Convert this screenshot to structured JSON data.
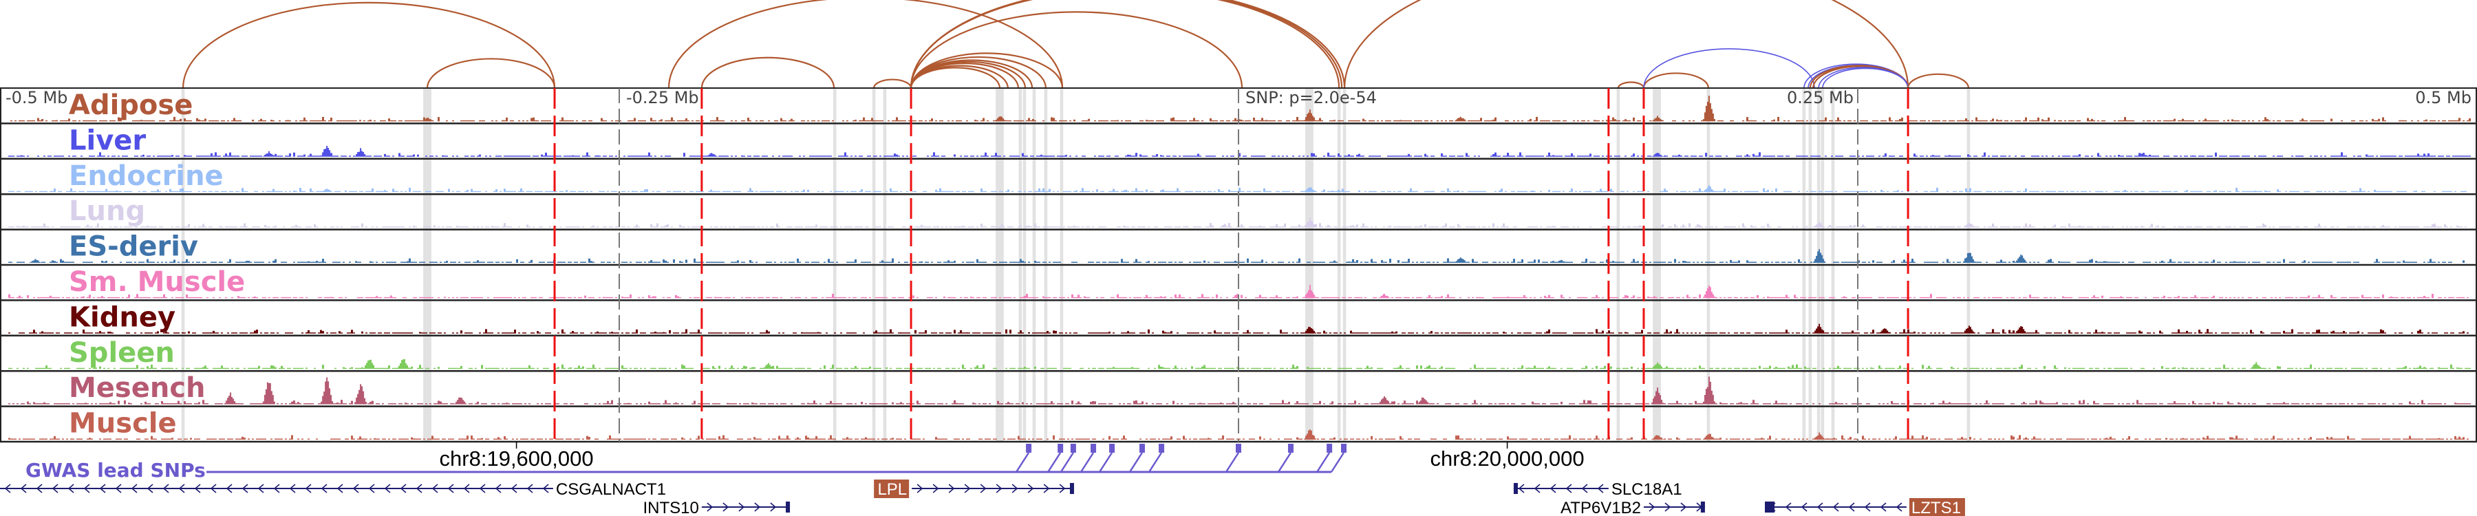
{
  "colors": {
    "arc_brown": "#b0582f",
    "arc_blue": "#5a55e0",
    "lead_snp_line": "#ee1111",
    "highlight": "#e2e2e2",
    "gene": "#1c1c70",
    "gwas": "#6a5acd",
    "gene_box": "#b0583a"
  },
  "axis": {
    "unit": "Mb offset from lead SNP",
    "labels": [
      {
        "pos": -0.5,
        "text": "-0.5 Mb",
        "anchor": "start"
      },
      {
        "pos": -0.25,
        "text": "-0.25 Mb",
        "anchor": "start"
      },
      {
        "pos": 0,
        "text": "SNP: p=2.0e-54",
        "anchor": "start"
      },
      {
        "pos": 0.25,
        "text": "0.25 Mb",
        "anchor": "end"
      },
      {
        "pos": 0.5,
        "text": "0.5 Mb",
        "anchor": "end"
      }
    ],
    "ruler": [
      {
        "pos": -0.2915,
        "text": "chr8:19,600,000"
      },
      {
        "pos": 0.1085,
        "text": "chr8:20,000,000"
      }
    ]
  },
  "lead_snp_lines": [
    -0.2761,
    -0.2167,
    -0.1322,
    0.1494,
    0.1636,
    0.2703
  ],
  "highlights": [
    [
      -0.4261,
      1
    ],
    [
      -0.3275,
      3
    ],
    [
      -0.163,
      1
    ],
    [
      -0.1472,
      1
    ],
    [
      -0.1428,
      1
    ],
    [
      -0.0964,
      3
    ],
    [
      -0.0881,
      1
    ],
    [
      -0.0864,
      1
    ],
    [
      -0.0825,
      1
    ],
    [
      -0.0778,
      1
    ],
    [
      -0.0714,
      1
    ],
    [
      0.0286,
      3
    ],
    [
      0.0406,
      1
    ],
    [
      0.0428,
      1
    ],
    [
      0.1533,
      1
    ],
    [
      0.1689,
      3
    ],
    [
      0.1897,
      1
    ],
    [
      0.2283,
      1
    ],
    [
      0.2308,
      1
    ],
    [
      0.2342,
      1
    ],
    [
      0.2358,
      1
    ],
    [
      0.24,
      1
    ],
    [
      0.2947,
      1
    ]
  ],
  "arcs": [
    {
      "from": -0.4261,
      "to": -0.2761,
      "color": "brown"
    },
    {
      "from": -0.3275,
      "to": -0.2761,
      "color": "brown"
    },
    {
      "from": -0.2167,
      "to": -0.1633,
      "color": "brown"
    },
    {
      "from": -0.1472,
      "to": -0.1322,
      "color": "brown"
    },
    {
      "from": -0.1322,
      "to": -0.0964,
      "color": "brown"
    },
    {
      "from": -0.1322,
      "to": -0.0931,
      "color": "brown"
    },
    {
      "from": -0.1322,
      "to": -0.0889,
      "color": "brown"
    },
    {
      "from": -0.1322,
      "to": -0.0861,
      "color": "brown"
    },
    {
      "from": -0.1322,
      "to": -0.0833,
      "color": "brown"
    },
    {
      "from": -0.1322,
      "to": -0.0778,
      "color": "brown"
    },
    {
      "from": -0.1322,
      "to": -0.0711,
      "color": "brown"
    },
    {
      "from": -0.1322,
      "to": 0.0014,
      "color": "brown"
    },
    {
      "from": -0.23,
      "to": -0.0711,
      "color": "brown"
    },
    {
      "from": -0.1322,
      "to": 0.0406,
      "color": "brown"
    },
    {
      "from": -0.1322,
      "to": 0.0417,
      "color": "brown"
    },
    {
      "from": -0.1322,
      "to": 0.0428,
      "color": "brown"
    },
    {
      "from": 0.0428,
      "to": 0.2703,
      "color": "brown"
    },
    {
      "from": 0.1533,
      "to": 0.1636,
      "color": "brown"
    },
    {
      "from": 0.1636,
      "to": 0.1897,
      "color": "brown"
    },
    {
      "from": 0.1636,
      "to": 0.2325,
      "color": "blue"
    },
    {
      "from": 0.2283,
      "to": 0.2703,
      "color": "blue"
    },
    {
      "from": 0.23,
      "to": 0.2703,
      "color": "blue"
    },
    {
      "from": 0.2308,
      "to": 0.2703,
      "color": "brown"
    },
    {
      "from": 0.232,
      "to": 0.2703,
      "color": "brown"
    },
    {
      "from": 0.2342,
      "to": 0.2703,
      "color": "blue"
    },
    {
      "from": 0.2358,
      "to": 0.2703,
      "color": "blue"
    },
    {
      "from": 0.2703,
      "to": 0.2947,
      "color": "brown"
    }
  ],
  "tracks": [
    {
      "label": "Adipose",
      "color": "#b0583a",
      "peaks": [
        [
          0.1897,
          0.95
        ],
        [
          0.0286,
          0.45
        ],
        [
          0.1689,
          0.2
        ],
        [
          -0.0964,
          0.2
        ],
        [
          -0.3275,
          0.15
        ],
        [
          0.0,
          0.1
        ],
        [
          0.0894,
          0.2
        ]
      ]
    },
    {
      "label": "Liver",
      "color": "#5050e6",
      "peaks": [
        [
          -0.3683,
          0.45
        ],
        [
          -0.3547,
          0.3
        ],
        [
          -0.3917,
          0.2
        ],
        [
          -0.213,
          0.15
        ],
        [
          0.1689,
          0.15
        ]
      ]
    },
    {
      "label": "Endocrine",
      "color": "#99bff7",
      "peaks": [
        [
          0.1897,
          0.25
        ],
        [
          0.0286,
          0.2
        ],
        [
          -0.3683,
          0.15
        ]
      ]
    },
    {
      "label": "Lung",
      "color": "#d8d0ea",
      "peaks": [
        [
          0.0286,
          0.35
        ],
        [
          0.2342,
          0.2
        ],
        [
          0.2947,
          0.2
        ]
      ]
    },
    {
      "label": "ES-deriv",
      "color": "#3f74aa",
      "peaks": [
        [
          0.2342,
          0.5
        ],
        [
          0.2947,
          0.45
        ],
        [
          0.3156,
          0.35
        ],
        [
          0.0894,
          0.25
        ],
        [
          -0.486,
          0.15
        ]
      ]
    },
    {
      "label": "Sm. Muscle",
      "color": "#f27fbd",
      "peaks": [
        [
          0.0286,
          0.45
        ],
        [
          0.1897,
          0.5
        ],
        [
          0.0586,
          0.15
        ]
      ]
    },
    {
      "label": "Kidney",
      "color": "#680606",
      "peaks": [
        [
          0.2342,
          0.35
        ],
        [
          0.2947,
          0.3
        ],
        [
          0.3156,
          0.3
        ],
        [
          0.0286,
          0.3
        ],
        [
          0.2606,
          0.2
        ]
      ]
    },
    {
      "label": "Spleen",
      "color": "#7dcc5e",
      "peaks": [
        [
          -0.3511,
          0.4
        ],
        [
          -0.3375,
          0.45
        ],
        [
          -0.19,
          0.2
        ],
        [
          0.1689,
          0.25
        ],
        [
          0.4106,
          0.25
        ]
      ]
    },
    {
      "label": "Mesench",
      "color": "#b55a72",
      "peaks": [
        [
          -0.3917,
          0.95
        ],
        [
          -0.3683,
          1.0
        ],
        [
          -0.3547,
          0.85
        ],
        [
          -0.4072,
          0.4
        ],
        [
          -0.3144,
          0.3
        ],
        [
          0.1897,
          1.0
        ],
        [
          0.1689,
          0.6
        ],
        [
          0.0586,
          0.35
        ],
        [
          0.0744,
          0.3
        ]
      ]
    },
    {
      "label": "Muscle",
      "color": "#c26252",
      "peaks": [
        [
          0.0286,
          0.4
        ],
        [
          0.1897,
          0.25
        ],
        [
          0.2342,
          0.25
        ],
        [
          0.1689,
          0.2
        ]
      ]
    }
  ],
  "gwas": {
    "label": "GWAS lead SNPs",
    "snps": [
      -0.0847,
      -0.0719,
      -0.0667,
      -0.0586,
      -0.0511,
      -0.0389,
      -0.0311,
      0.0,
      0.0211,
      0.0367,
      0.0425
    ]
  },
  "genes": [
    {
      "name": "CSGALNACT1",
      "start": -0.5,
      "end": -0.2767,
      "strand": "-",
      "row": 0,
      "label_side": "right",
      "boxed": false
    },
    {
      "name": "INTS10",
      "start": -0.2167,
      "end": -0.1811,
      "strand": "+",
      "row": 1,
      "label_side": "left",
      "boxed": false
    },
    {
      "name": "LPL",
      "start": -0.1319,
      "end": -0.0664,
      "strand": "+",
      "row": 0,
      "label_side": "left",
      "boxed": true
    },
    {
      "name": "SLC18A1",
      "start": 0.1111,
      "end": 0.1494,
      "strand": "-",
      "row": 0,
      "label_side": "right",
      "boxed": false
    },
    {
      "name": "ATP6V1B2",
      "start": 0.1636,
      "end": 0.1883,
      "strand": "+",
      "row": 1,
      "label_side": "left",
      "boxed": false
    },
    {
      "name": "LZTS1",
      "start": 0.2125,
      "end": 0.2697,
      "strand": "-",
      "row": 1,
      "label_side": "right",
      "boxed": true
    }
  ]
}
